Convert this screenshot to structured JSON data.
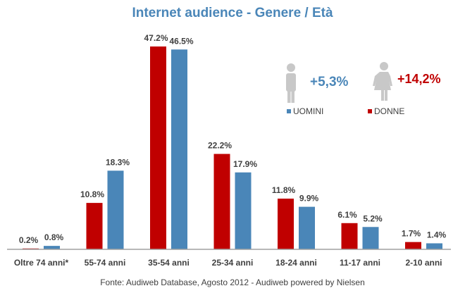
{
  "chart_data": {
    "type": "bar",
    "title": "Internet audience - Genere / Età",
    "categories": [
      "Oltre 74 anni*",
      "55-74 anni",
      "35-54 anni",
      "25-34 anni",
      "18-24 anni",
      "11-17 anni",
      "2-10 anni"
    ],
    "series": [
      {
        "name": "DONNE",
        "color": "#c00000",
        "values": [
          0.2,
          10.8,
          47.2,
          22.2,
          11.8,
          6.1,
          1.7
        ],
        "labels": [
          "0.2%",
          "10.8%",
          "47.2%",
          "22.2%",
          "11.8%",
          "6.1%",
          "1.7%"
        ]
      },
      {
        "name": "UOMINI",
        "color": "#4a86b8",
        "values": [
          0.8,
          18.3,
          46.5,
          17.9,
          9.9,
          5.2,
          1.4
        ],
        "labels": [
          "0.8%",
          "18.3%",
          "46.5%",
          "17.9%",
          "9.9%",
          "5.2%",
          "1.4%"
        ]
      }
    ],
    "ylim": [
      0,
      50
    ],
    "grid": false,
    "legend_placement": "top-right",
    "annotations": {
      "men_growth": "+5,3%",
      "women_growth": "+14,2%",
      "men_label": "UOMINI",
      "women_label": "DONNE"
    },
    "source": "Fonte: Audiweb Database, Agosto 2012 - Audiweb powered by Nielsen"
  }
}
